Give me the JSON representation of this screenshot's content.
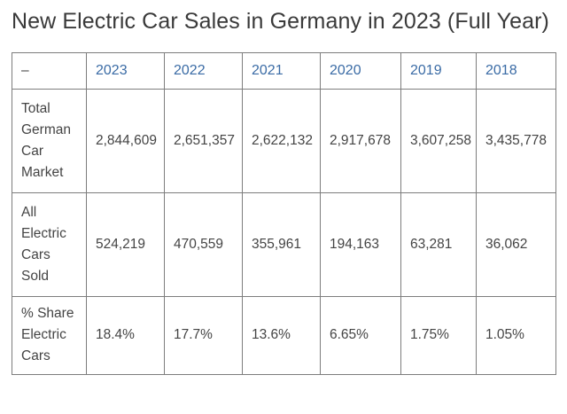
{
  "title": "New Electric Car Sales in Germany in 2023 (Full Year)",
  "table": {
    "header": [
      "–",
      "2023",
      "2022",
      "2021",
      "2020",
      "2019",
      "2018"
    ],
    "rows": [
      {
        "label": "Total German Car Market",
        "values": [
          "2,844,609",
          "2,651,357",
          "2,622,132",
          "2,917,678",
          "3,607,258",
          "3,435,778"
        ]
      },
      {
        "label": "All Electric Cars Sold",
        "values": [
          "524,219",
          "470,559",
          "355,961",
          "194,163",
          "63,281",
          "36,062"
        ]
      },
      {
        "label": "% Share Electric Cars",
        "values": [
          "18.4%",
          "17.7%",
          "13.6%",
          "6.65%",
          "1.75%",
          "1.05%"
        ]
      }
    ]
  },
  "colors": {
    "year_link": "#3a6ba5",
    "body_text": "#444444",
    "title_text": "#3a3a3a",
    "border": "#7d7d7d"
  }
}
